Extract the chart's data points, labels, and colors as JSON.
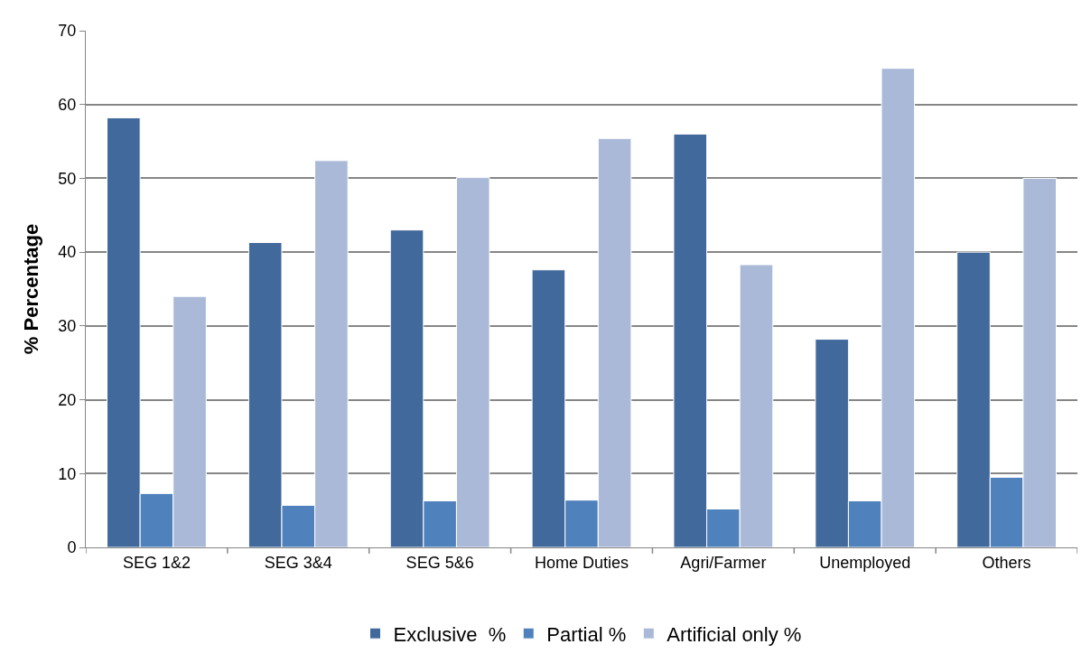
{
  "chart_data": {
    "type": "bar",
    "ylabel": "% Percentage",
    "categories": [
      "SEG 1&2",
      "SEG 3&4",
      "SEG 5&6",
      "Home Duties",
      "Agri/Farmer",
      "Unemployed",
      "Others"
    ],
    "series": [
      {
        "name": "Exclusive  %",
        "color": "#41699c",
        "values": [
          58.2,
          41.3,
          43.0,
          37.6,
          56.0,
          28.2,
          40.0
        ]
      },
      {
        "name": "Partial %",
        "color": "#4f81bd",
        "values": [
          7.3,
          5.7,
          6.3,
          6.4,
          5.2,
          6.3,
          9.5
        ]
      },
      {
        "name": "Artificial only %",
        "color": "#aab9d7",
        "values": [
          34.0,
          52.4,
          50.1,
          55.4,
          38.3,
          64.9,
          50.0
        ]
      }
    ],
    "ylim": [
      0,
      70
    ],
    "yticks": [
      0,
      10,
      20,
      30,
      40,
      50,
      60,
      70
    ],
    "grid": "y",
    "legend": "bottom"
  }
}
